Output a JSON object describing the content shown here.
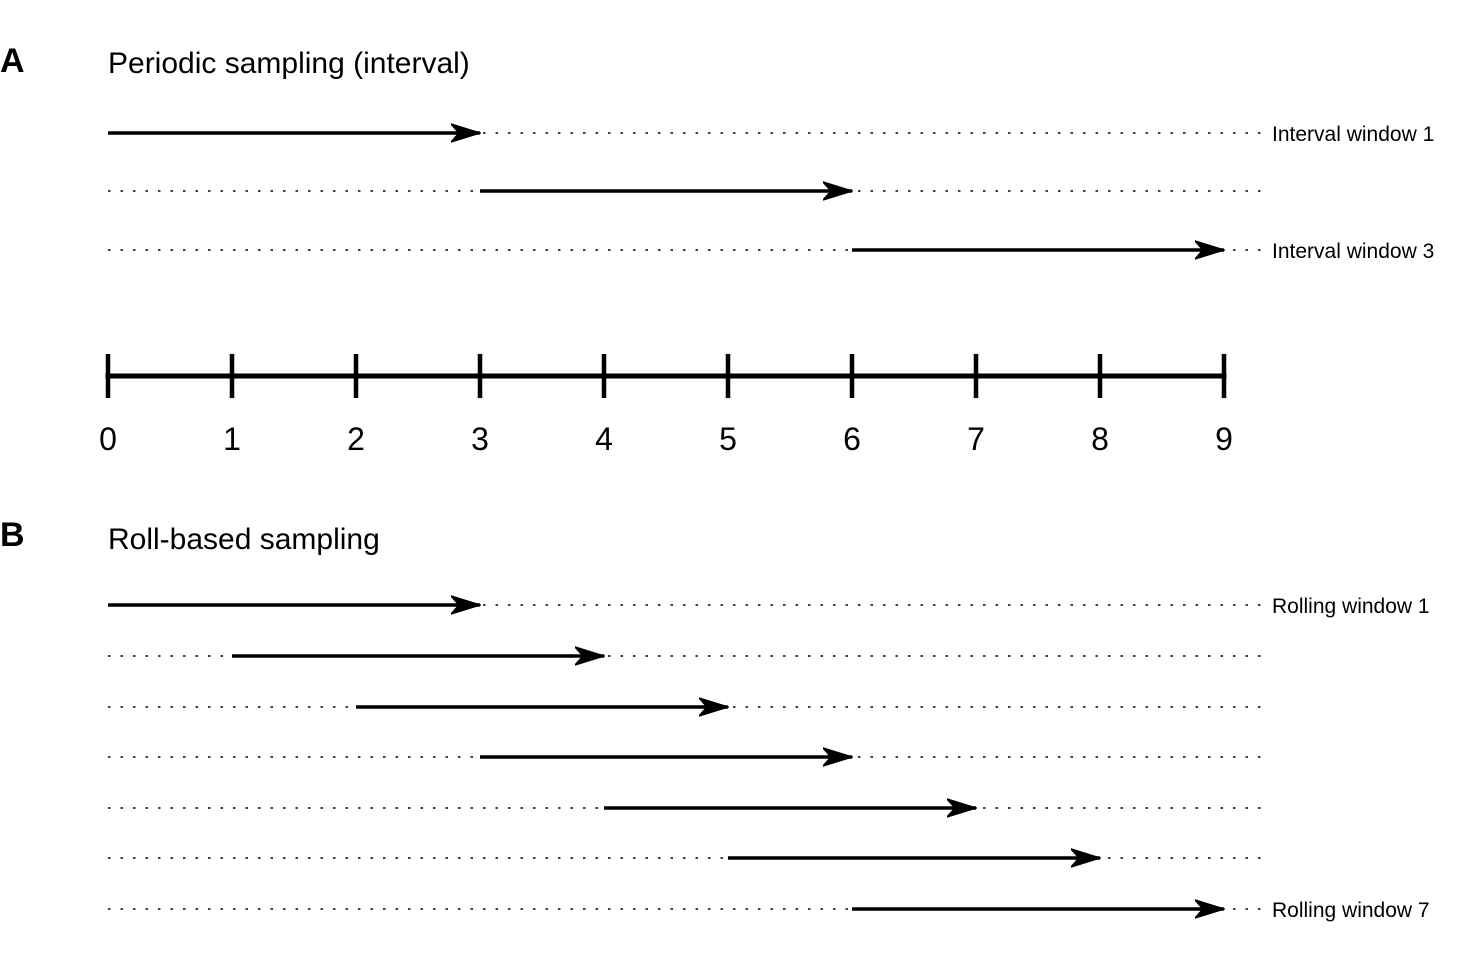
{
  "panels": {
    "a": {
      "letter": "A",
      "title": "Periodic sampling (interval)",
      "windows": [
        {
          "start": 0,
          "end": 3,
          "label": "Interval window 1"
        },
        {
          "start": 3,
          "end": 6,
          "label": ""
        },
        {
          "start": 6,
          "end": 9,
          "label": "Interval window 3"
        }
      ]
    },
    "b": {
      "letter": "B",
      "title": "Roll-based sampling",
      "windows": [
        {
          "start": 0,
          "end": 3,
          "label": "Rolling window 1"
        },
        {
          "start": 1,
          "end": 4,
          "label": ""
        },
        {
          "start": 2,
          "end": 5,
          "label": ""
        },
        {
          "start": 3,
          "end": 6,
          "label": ""
        },
        {
          "start": 4,
          "end": 7,
          "label": ""
        },
        {
          "start": 5,
          "end": 8,
          "label": ""
        },
        {
          "start": 6,
          "end": 9,
          "label": "Rolling window 7"
        }
      ]
    }
  },
  "axis": {
    "ticks": [
      "0",
      "1",
      "2",
      "3",
      "4",
      "5",
      "6",
      "7",
      "8",
      "9"
    ]
  },
  "colors": {
    "ink": "#000000",
    "background": "#ffffff"
  }
}
